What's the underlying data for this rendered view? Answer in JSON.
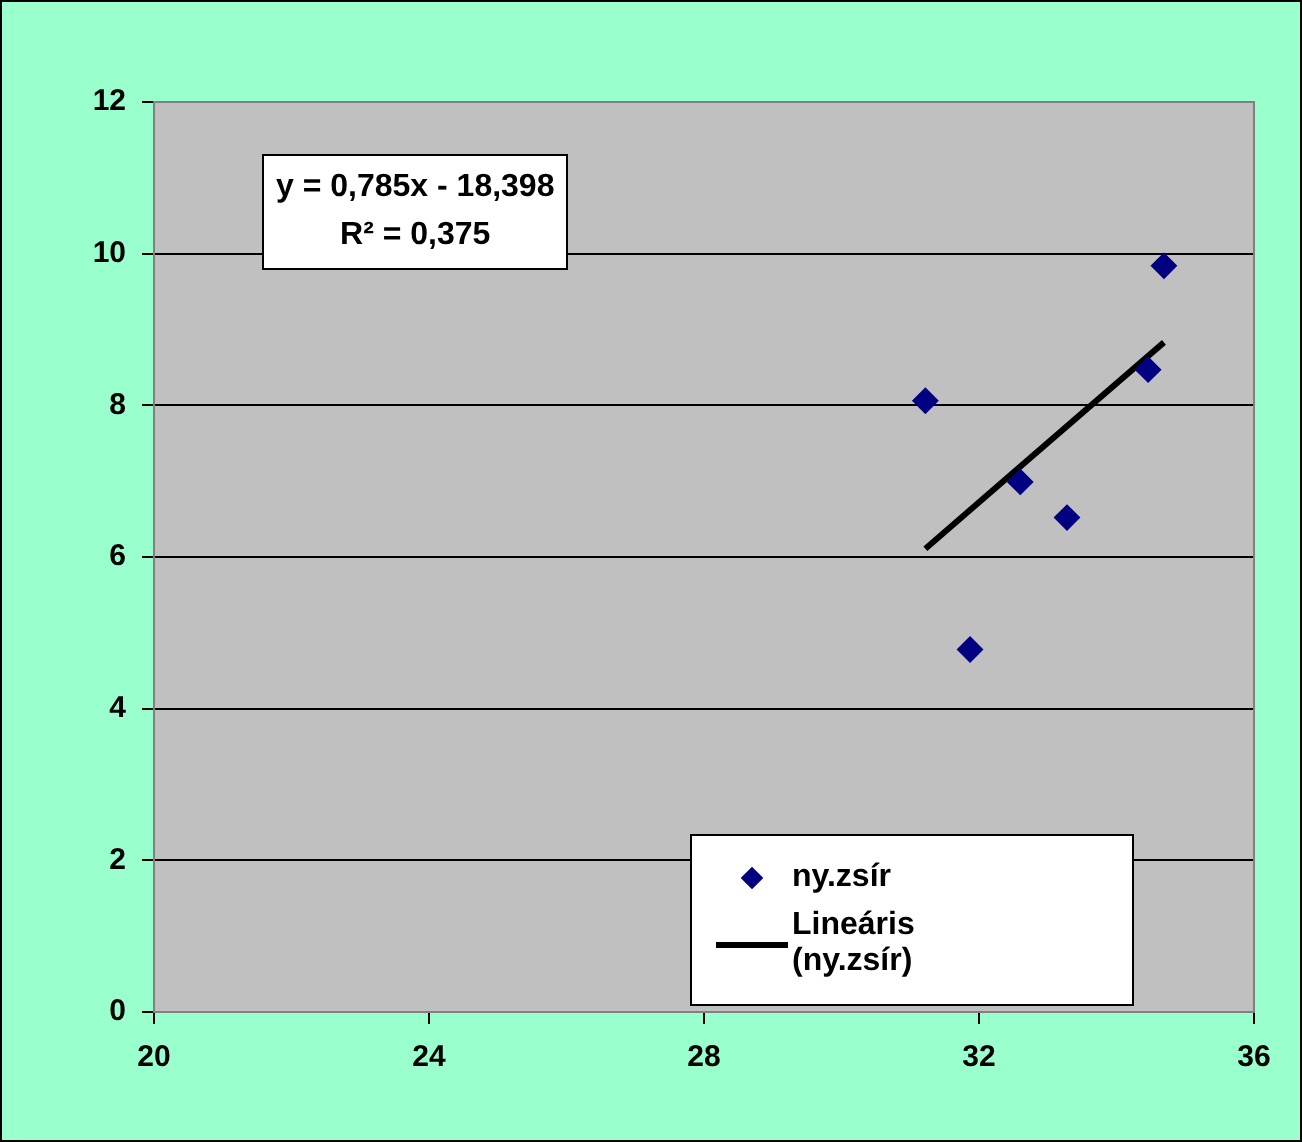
{
  "chart_data": {
    "type": "scatter",
    "annotations": [
      "y = 0,785x - 18,398",
      "R² = 0,375"
    ],
    "series": [
      {
        "name": "ny.zsír",
        "color": "#000080",
        "marker": "diamond",
        "x": [
          31.22,
          31.87,
          32.6,
          33.28,
          34.46,
          34.69
        ],
        "values": [
          8.06,
          4.78,
          6.99,
          6.52,
          8.47,
          9.84
        ]
      },
      {
        "name": "Lineáris (ny.zsír)",
        "type": "line",
        "color": "#000000",
        "marker": "none",
        "x": [
          31.22,
          34.69
        ],
        "values": [
          6.11,
          8.83
        ]
      }
    ],
    "xlim": [
      20,
      36
    ],
    "xticks": [
      20,
      24,
      28,
      32,
      36
    ],
    "ylim": [
      0,
      12
    ],
    "yticks": [
      0,
      2,
      4,
      6,
      8,
      10,
      12
    ],
    "grid": "y",
    "legend": "bottom right"
  }
}
